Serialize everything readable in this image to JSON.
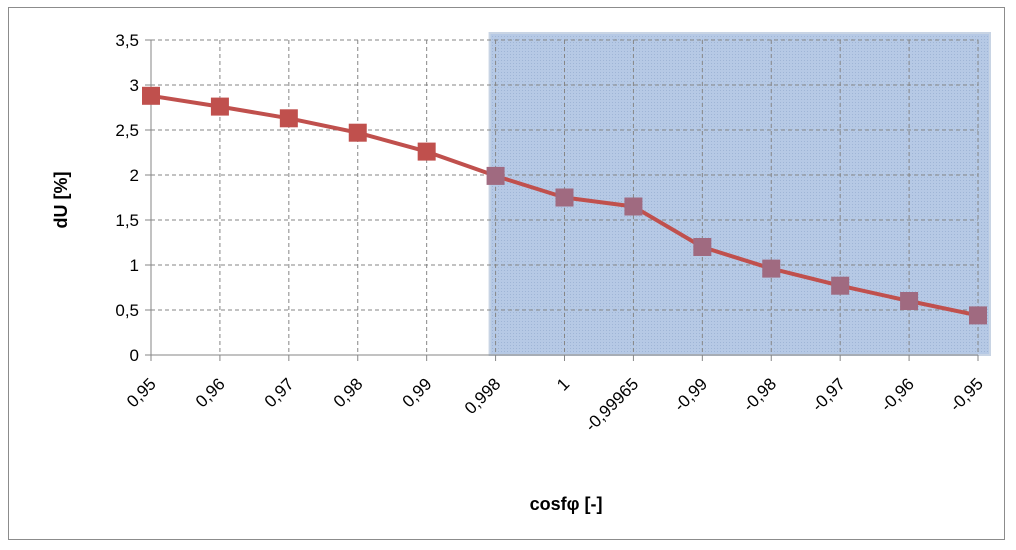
{
  "chart_data": {
    "type": "line",
    "xlabel": "cosfφ [-]",
    "ylabel": "dU [%]",
    "categories": [
      "0,95",
      "0,96",
      "0,97",
      "0,98",
      "0,99",
      "0,998",
      "1",
      "-0,99965",
      "-0,99",
      "-0,98",
      "-0,97",
      "-0,96",
      "-0,95"
    ],
    "series": [
      {
        "values": [
          2.88,
          2.76,
          2.63,
          2.47,
          2.26,
          1.99,
          1.75,
          1.65,
          1.2,
          0.96,
          0.77,
          0.6,
          0.44
        ]
      }
    ],
    "ylim": [
      0,
      3.5
    ],
    "yticks": [
      0,
      0.5,
      1,
      1.5,
      2,
      2.5,
      3,
      3.5
    ],
    "ytick_labels": [
      "0",
      "0,5",
      "1",
      "1,5",
      "2",
      "2,5",
      "3",
      "3,5"
    ],
    "grid": "dashed",
    "highlight_region": {
      "from_category": "0,998",
      "to_category": "-0,95",
      "color": "#b4c8e4"
    },
    "colors": {
      "line": "#c0504d",
      "marker": "#c0504d",
      "marker_in_region": "#a06a80"
    }
  }
}
